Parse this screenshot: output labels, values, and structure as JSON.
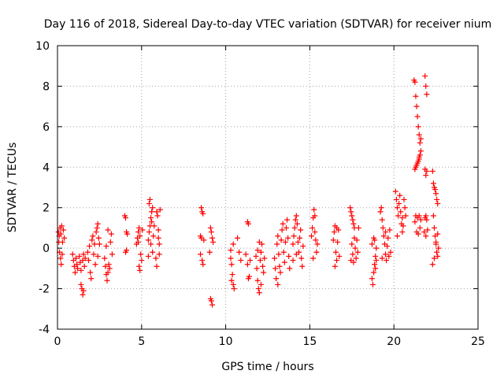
{
  "chart_data": {
    "type": "scatter",
    "title": "Day 116 of 2018, Sidereal Day-to-day VTEC variation (SDTVAR) for receiver nium",
    "xlabel": "GPS time / hours",
    "ylabel": "SDTVAR / TECUs",
    "xlim": [
      0,
      25
    ],
    "ylim": [
      -4,
      10
    ],
    "xticks": [
      0,
      5,
      10,
      15,
      20,
      25
    ],
    "yticks": [
      -4,
      -2,
      0,
      2,
      4,
      6,
      8,
      10
    ],
    "grid": true,
    "marker": "+",
    "color": "#ff0000",
    "points": [
      [
        0.05,
        0.8
      ],
      [
        0.1,
        0.6
      ],
      [
        0.15,
        1.0
      ],
      [
        0.2,
        0.7
      ],
      [
        0.25,
        1.1
      ],
      [
        0.12,
        -0.2
      ],
      [
        0.18,
        -0.5
      ],
      [
        0.22,
        -0.8
      ],
      [
        0.3,
        0.3
      ],
      [
        0.35,
        0.9
      ],
      [
        0.08,
        0.3
      ],
      [
        0.28,
        -0.3
      ],
      [
        0.4,
        0.5
      ],
      [
        0.9,
        -0.3
      ],
      [
        0.95,
        -0.6
      ],
      [
        1.0,
        -0.9
      ],
      [
        1.05,
        -1.2
      ],
      [
        1.1,
        -0.5
      ],
      [
        1.15,
        -0.8
      ],
      [
        1.2,
        -1.0
      ],
      [
        1.3,
        -0.4
      ],
      [
        1.35,
        -0.7
      ],
      [
        1.4,
        -1.1
      ],
      [
        1.5,
        -0.6
      ],
      [
        1.55,
        -0.3
      ],
      [
        1.6,
        -0.9
      ],
      [
        1.45,
        -2.0
      ],
      [
        1.5,
        -2.3
      ],
      [
        1.55,
        -2.1
      ],
      [
        1.4,
        -1.8
      ],
      [
        1.65,
        -0.5
      ],
      [
        1.8,
        -0.2
      ],
      [
        1.85,
        -0.6
      ],
      [
        1.9,
        0.1
      ],
      [
        1.95,
        -1.2
      ],
      [
        2.0,
        -1.5
      ],
      [
        2.05,
        0.4
      ],
      [
        2.1,
        0.6
      ],
      [
        2.15,
        -0.3
      ],
      [
        2.2,
        0.2
      ],
      [
        2.3,
        0.8
      ],
      [
        2.35,
        1.0
      ],
      [
        2.4,
        1.2
      ],
      [
        2.45,
        0.5
      ],
      [
        2.5,
        0.2
      ],
      [
        2.25,
        -0.8
      ],
      [
        2.4,
        -0.4
      ],
      [
        2.8,
        -0.5
      ],
      [
        2.85,
        -0.9
      ],
      [
        2.9,
        -1.3
      ],
      [
        2.95,
        -1.6
      ],
      [
        3.0,
        -1.2
      ],
      [
        3.05,
        -0.8
      ],
      [
        3.1,
        -1.0
      ],
      [
        3.15,
        0.3
      ],
      [
        3.2,
        0.7
      ],
      [
        3.0,
        0.9
      ],
      [
        2.9,
        0.1
      ],
      [
        3.25,
        -0.3
      ],
      [
        4.0,
        1.6
      ],
      [
        4.05,
        1.5
      ],
      [
        4.1,
        0.8
      ],
      [
        4.15,
        0.7
      ],
      [
        4.05,
        -0.2
      ],
      [
        4.1,
        -0.1
      ],
      [
        4.7,
        0.2
      ],
      [
        4.75,
        0.5
      ],
      [
        4.8,
        0.8
      ],
      [
        4.85,
        1.0
      ],
      [
        4.9,
        0.6
      ],
      [
        4.95,
        -0.3
      ],
      [
        5.0,
        -0.6
      ],
      [
        4.85,
        -0.9
      ],
      [
        4.9,
        -1.1
      ],
      [
        5.05,
        0.9
      ],
      [
        4.8,
        0.3
      ],
      [
        5.4,
        0.4
      ],
      [
        5.45,
        0.8
      ],
      [
        5.5,
        1.1
      ],
      [
        5.55,
        1.5
      ],
      [
        5.6,
        1.8
      ],
      [
        5.65,
        2.0
      ],
      [
        5.5,
        2.4
      ],
      [
        5.45,
        2.2
      ],
      [
        5.6,
        1.3
      ],
      [
        5.55,
        0.2
      ],
      [
        5.65,
        -0.2
      ],
      [
        5.7,
        0.6
      ],
      [
        5.75,
        1.1
      ],
      [
        5.4,
        -0.4
      ],
      [
        5.9,
        1.8
      ],
      [
        5.95,
        1.6
      ],
      [
        6.0,
        0.5
      ],
      [
        6.05,
        0.2
      ],
      [
        6.1,
        1.9
      ],
      [
        5.85,
        -0.5
      ],
      [
        5.9,
        -0.9
      ],
      [
        6.0,
        0.9
      ],
      [
        6.05,
        -0.3
      ],
      [
        8.55,
        2.0
      ],
      [
        8.6,
        1.8
      ],
      [
        8.65,
        1.7
      ],
      [
        8.5,
        0.6
      ],
      [
        8.55,
        0.5
      ],
      [
        8.6,
        -0.6
      ],
      [
        8.65,
        -0.8
      ],
      [
        8.7,
        0.4
      ],
      [
        8.5,
        -0.3
      ],
      [
        9.1,
        1.0
      ],
      [
        9.15,
        0.8
      ],
      [
        9.2,
        0.5
      ],
      [
        9.25,
        0.3
      ],
      [
        9.05,
        -0.2
      ],
      [
        9.15,
        -2.6
      ],
      [
        9.2,
        -2.8
      ],
      [
        9.1,
        -2.5
      ],
      [
        10.3,
        -0.5
      ],
      [
        10.35,
        -0.8
      ],
      [
        10.4,
        -1.3
      ],
      [
        10.45,
        -1.8
      ],
      [
        10.5,
        -2.0
      ],
      [
        10.3,
        -0.1
      ],
      [
        10.45,
        0.2
      ],
      [
        10.35,
        -1.6
      ],
      [
        10.7,
        0.5
      ],
      [
        10.8,
        -0.2
      ],
      [
        10.9,
        -0.6
      ],
      [
        11.3,
        1.3
      ],
      [
        11.35,
        1.2
      ],
      [
        11.2,
        -0.3
      ],
      [
        11.3,
        -0.8
      ],
      [
        11.4,
        -1.4
      ],
      [
        11.35,
        -1.5
      ],
      [
        11.45,
        -0.6
      ],
      [
        11.8,
        -0.4
      ],
      [
        11.85,
        -1.0
      ],
      [
        11.9,
        -1.6
      ],
      [
        11.95,
        -2.0
      ],
      [
        12.0,
        -2.2
      ],
      [
        12.05,
        -0.6
      ],
      [
        12.1,
        -0.2
      ],
      [
        12.15,
        0.2
      ],
      [
        12.2,
        -0.9
      ],
      [
        12.25,
        -1.2
      ],
      [
        12.3,
        -0.5
      ],
      [
        12.0,
        0.3
      ],
      [
        11.9,
        -0.1
      ],
      [
        12.1,
        -1.8
      ],
      [
        12.9,
        -0.5
      ],
      [
        12.95,
        -1.0
      ],
      [
        13.0,
        -1.5
      ],
      [
        13.05,
        0.2
      ],
      [
        13.1,
        0.6
      ],
      [
        13.15,
        -0.3
      ],
      [
        13.2,
        -0.9
      ],
      [
        13.3,
        0.4
      ],
      [
        13.35,
        0.9
      ],
      [
        13.4,
        1.2
      ],
      [
        13.45,
        -0.2
      ],
      [
        13.5,
        -0.7
      ],
      [
        13.55,
        0.3
      ],
      [
        13.6,
        1.0
      ],
      [
        13.65,
        1.4
      ],
      [
        13.7,
        0.5
      ],
      [
        13.75,
        -0.4
      ],
      [
        13.8,
        -1.0
      ],
      [
        13.25,
        -1.2
      ],
      [
        13.1,
        -1.8
      ],
      [
        14.0,
        0.2
      ],
      [
        14.05,
        0.6
      ],
      [
        14.1,
        1.0
      ],
      [
        14.15,
        1.4
      ],
      [
        14.2,
        1.6
      ],
      [
        14.25,
        1.2
      ],
      [
        14.3,
        0.3
      ],
      [
        14.35,
        -0.2
      ],
      [
        14.4,
        0.5
      ],
      [
        14.45,
        0.9
      ],
      [
        14.5,
        -0.5
      ],
      [
        14.55,
        -0.9
      ],
      [
        14.6,
        0.1
      ],
      [
        14.0,
        -0.6
      ],
      [
        14.2,
        -0.3
      ],
      [
        15.1,
        0.6
      ],
      [
        15.15,
        1.0
      ],
      [
        15.2,
        1.5
      ],
      [
        15.25,
        1.9
      ],
      [
        15.3,
        1.6
      ],
      [
        15.35,
        0.4
      ],
      [
        15.4,
        -0.2
      ],
      [
        15.45,
        0.2
      ],
      [
        15.2,
        -0.5
      ],
      [
        15.3,
        0.8
      ],
      [
        16.4,
        0.4
      ],
      [
        16.45,
        0.8
      ],
      [
        16.5,
        1.1
      ],
      [
        16.55,
        -0.2
      ],
      [
        16.6,
        -0.6
      ],
      [
        16.65,
        0.3
      ],
      [
        16.7,
        0.9
      ],
      [
        16.75,
        -0.4
      ],
      [
        16.5,
        -0.9
      ],
      [
        16.6,
        1.0
      ],
      [
        17.4,
        2.0
      ],
      [
        17.45,
        1.8
      ],
      [
        17.5,
        1.6
      ],
      [
        17.55,
        1.4
      ],
      [
        17.6,
        1.2
      ],
      [
        17.65,
        1.0
      ],
      [
        17.5,
        0.2
      ],
      [
        17.55,
        -0.3
      ],
      [
        17.6,
        -0.7
      ],
      [
        17.65,
        0.5
      ],
      [
        17.7,
        0.0
      ],
      [
        17.75,
        -0.5
      ],
      [
        17.8,
        0.4
      ],
      [
        17.85,
        -0.2
      ],
      [
        17.45,
        -0.6
      ],
      [
        17.9,
        1.0
      ],
      [
        18.7,
        -1.5
      ],
      [
        18.75,
        -1.8
      ],
      [
        18.8,
        -1.2
      ],
      [
        18.85,
        -0.8
      ],
      [
        18.9,
        -0.4
      ],
      [
        18.95,
        0.0
      ],
      [
        18.7,
        0.2
      ],
      [
        18.8,
        0.5
      ],
      [
        18.9,
        -1.0
      ],
      [
        18.85,
        0.4
      ],
      [
        18.95,
        -0.6
      ],
      [
        19.2,
        1.8
      ],
      [
        19.25,
        2.0
      ],
      [
        19.3,
        1.4
      ],
      [
        19.35,
        1.0
      ],
      [
        19.4,
        0.6
      ],
      [
        19.45,
        0.2
      ],
      [
        19.5,
        -0.3
      ],
      [
        19.55,
        -0.6
      ],
      [
        19.6,
        0.1
      ],
      [
        19.65,
        0.5
      ],
      [
        19.7,
        -0.4
      ],
      [
        19.75,
        0.9
      ],
      [
        19.8,
        -0.2
      ],
      [
        19.3,
        -0.5
      ],
      [
        19.5,
        0.8
      ],
      [
        20.1,
        2.8
      ],
      [
        20.15,
        2.4
      ],
      [
        20.2,
        2.0
      ],
      [
        20.25,
        1.6
      ],
      [
        20.3,
        2.2
      ],
      [
        20.35,
        2.6
      ],
      [
        20.4,
        1.8
      ],
      [
        20.45,
        1.2
      ],
      [
        20.5,
        0.8
      ],
      [
        20.55,
        1.1
      ],
      [
        20.6,
        2.4
      ],
      [
        20.65,
        2.0
      ],
      [
        20.7,
        1.6
      ],
      [
        20.5,
        1.5
      ],
      [
        20.2,
        0.6
      ],
      [
        21.2,
        8.3
      ],
      [
        21.25,
        8.2
      ],
      [
        21.3,
        7.5
      ],
      [
        21.35,
        7.0
      ],
      [
        21.4,
        6.5
      ],
      [
        21.45,
        6.0
      ],
      [
        21.5,
        5.6
      ],
      [
        21.55,
        5.2
      ],
      [
        21.6,
        4.8
      ],
      [
        21.55,
        4.6
      ],
      [
        21.5,
        4.4
      ],
      [
        21.45,
        4.3
      ],
      [
        21.4,
        4.2
      ],
      [
        21.35,
        4.1
      ],
      [
        21.3,
        4.0
      ],
      [
        21.25,
        3.9
      ],
      [
        21.5,
        4.5
      ],
      [
        21.6,
        5.4
      ],
      [
        21.3,
        1.6
      ],
      [
        21.4,
        1.5
      ],
      [
        21.5,
        1.6
      ],
      [
        21.6,
        1.4
      ],
      [
        21.35,
        0.8
      ],
      [
        21.45,
        0.7
      ],
      [
        21.55,
        1.0
      ],
      [
        21.25,
        1.3
      ],
      [
        21.85,
        8.5
      ],
      [
        21.9,
        8.0
      ],
      [
        21.95,
        7.6
      ],
      [
        21.85,
        3.9
      ],
      [
        21.9,
        3.6
      ],
      [
        21.95,
        3.8
      ],
      [
        21.9,
        1.6
      ],
      [
        21.85,
        1.5
      ],
      [
        21.95,
        1.4
      ],
      [
        21.8,
        0.8
      ],
      [
        21.9,
        0.6
      ],
      [
        22.0,
        0.9
      ],
      [
        22.3,
        3.8
      ],
      [
        22.35,
        3.2
      ],
      [
        22.4,
        3.0
      ],
      [
        22.45,
        2.9
      ],
      [
        22.5,
        2.7
      ],
      [
        22.55,
        2.4
      ],
      [
        22.6,
        2.2
      ],
      [
        22.35,
        1.6
      ],
      [
        22.4,
        1.0
      ],
      [
        22.45,
        0.6
      ],
      [
        22.5,
        0.2
      ],
      [
        22.55,
        -0.2
      ],
      [
        22.6,
        -0.4
      ],
      [
        22.65,
        0.0
      ],
      [
        22.3,
        -0.8
      ],
      [
        22.4,
        -0.5
      ],
      [
        22.5,
        0.3
      ],
      [
        22.6,
        0.7
      ]
    ]
  }
}
